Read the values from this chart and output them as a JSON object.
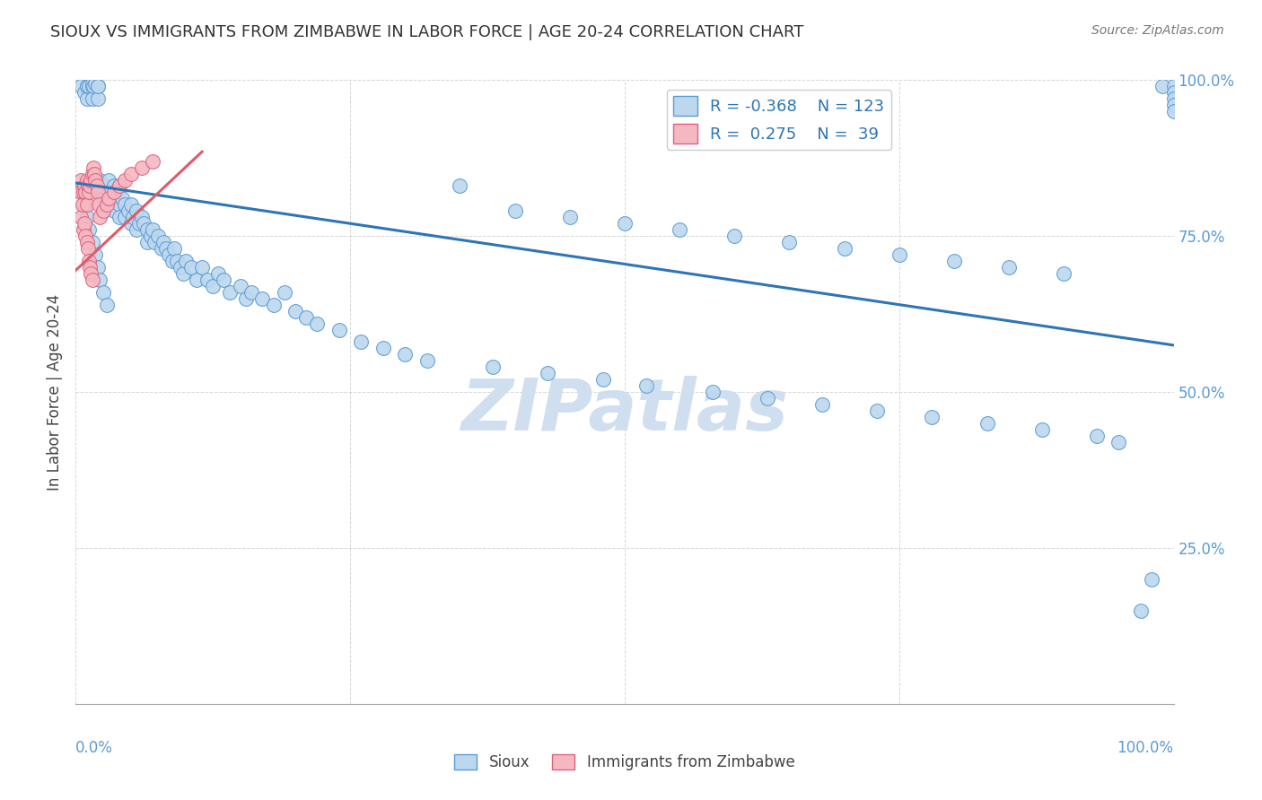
{
  "title": "SIOUX VS IMMIGRANTS FROM ZIMBABWE IN LABOR FORCE | AGE 20-24 CORRELATION CHART",
  "source": "Source: ZipAtlas.com",
  "ylabel": "In Labor Force | Age 20-24",
  "xlim": [
    0.0,
    1.0
  ],
  "ylim": [
    0.0,
    1.0
  ],
  "color_blue": "#BDD7EE",
  "color_blue_edge": "#5B9BD5",
  "color_pink": "#F4B8C1",
  "color_pink_edge": "#E06080",
  "color_blue_line": "#2E75B6",
  "color_pink_line": "#E05A6A",
  "watermark_color": "#D0DFF0",
  "background_color": "#FFFFFF",
  "tick_color": "#5B9BD5",
  "blue_line_x0": 0.0,
  "blue_line_y0": 0.835,
  "blue_line_x1": 1.0,
  "blue_line_y1": 0.575,
  "pink_line_x0": 0.0,
  "pink_line_y0": 0.695,
  "pink_line_x1": 0.115,
  "pink_line_y1": 0.885,
  "sioux_x": [
    0.005,
    0.008,
    0.01,
    0.01,
    0.01,
    0.012,
    0.015,
    0.015,
    0.015,
    0.016,
    0.018,
    0.02,
    0.02,
    0.02,
    0.022,
    0.022,
    0.025,
    0.025,
    0.025,
    0.028,
    0.03,
    0.03,
    0.03,
    0.032,
    0.035,
    0.035,
    0.038,
    0.04,
    0.04,
    0.04,
    0.042,
    0.045,
    0.045,
    0.048,
    0.05,
    0.05,
    0.052,
    0.055,
    0.055,
    0.058,
    0.06,
    0.062,
    0.065,
    0.065,
    0.068,
    0.07,
    0.072,
    0.075,
    0.078,
    0.08,
    0.082,
    0.085,
    0.088,
    0.09,
    0.092,
    0.095,
    0.098,
    0.1,
    0.105,
    0.11,
    0.115,
    0.12,
    0.125,
    0.13,
    0.135,
    0.14,
    0.15,
    0.155,
    0.16,
    0.17,
    0.18,
    0.19,
    0.2,
    0.21,
    0.22,
    0.24,
    0.26,
    0.28,
    0.3,
    0.32,
    0.35,
    0.38,
    0.4,
    0.43,
    0.45,
    0.48,
    0.5,
    0.52,
    0.55,
    0.58,
    0.6,
    0.63,
    0.65,
    0.68,
    0.7,
    0.73,
    0.75,
    0.78,
    0.8,
    0.83,
    0.85,
    0.88,
    0.9,
    0.93,
    0.95,
    0.97,
    0.98,
    0.99,
    1.0,
    1.0,
    1.0,
    1.0,
    1.0,
    0.005,
    0.008,
    0.01,
    0.012,
    0.015,
    0.018,
    0.02,
    0.022,
    0.025,
    0.028
  ],
  "sioux_y": [
    0.99,
    0.98,
    0.99,
    0.97,
    0.99,
    0.99,
    0.99,
    0.97,
    0.995,
    0.99,
    0.995,
    0.99,
    0.97,
    0.99,
    0.84,
    0.82,
    0.83,
    0.81,
    0.79,
    0.82,
    0.84,
    0.82,
    0.8,
    0.81,
    0.83,
    0.79,
    0.82,
    0.83,
    0.8,
    0.78,
    0.81,
    0.8,
    0.78,
    0.79,
    0.8,
    0.77,
    0.78,
    0.79,
    0.76,
    0.77,
    0.78,
    0.77,
    0.76,
    0.74,
    0.75,
    0.76,
    0.74,
    0.75,
    0.73,
    0.74,
    0.73,
    0.72,
    0.71,
    0.73,
    0.71,
    0.7,
    0.69,
    0.71,
    0.7,
    0.68,
    0.7,
    0.68,
    0.67,
    0.69,
    0.68,
    0.66,
    0.67,
    0.65,
    0.66,
    0.65,
    0.64,
    0.66,
    0.63,
    0.62,
    0.61,
    0.6,
    0.58,
    0.57,
    0.56,
    0.55,
    0.83,
    0.54,
    0.79,
    0.53,
    0.78,
    0.52,
    0.77,
    0.51,
    0.76,
    0.5,
    0.75,
    0.49,
    0.74,
    0.48,
    0.73,
    0.47,
    0.72,
    0.46,
    0.71,
    0.45,
    0.7,
    0.44,
    0.69,
    0.43,
    0.42,
    0.15,
    0.2,
    0.99,
    0.99,
    0.98,
    0.97,
    0.96,
    0.95,
    0.82,
    0.8,
    0.78,
    0.76,
    0.74,
    0.72,
    0.7,
    0.68,
    0.66,
    0.64
  ],
  "zimbabwe_x": [
    0.005,
    0.005,
    0.005,
    0.006,
    0.007,
    0.007,
    0.008,
    0.008,
    0.009,
    0.009,
    0.01,
    0.01,
    0.01,
    0.011,
    0.011,
    0.012,
    0.012,
    0.013,
    0.013,
    0.014,
    0.014,
    0.015,
    0.015,
    0.016,
    0.017,
    0.018,
    0.019,
    0.02,
    0.021,
    0.022,
    0.025,
    0.028,
    0.03,
    0.035,
    0.04,
    0.045,
    0.05,
    0.06,
    0.07
  ],
  "zimbabwe_y": [
    0.84,
    0.82,
    0.78,
    0.8,
    0.82,
    0.76,
    0.83,
    0.77,
    0.82,
    0.75,
    0.84,
    0.8,
    0.74,
    0.83,
    0.73,
    0.82,
    0.71,
    0.83,
    0.7,
    0.84,
    0.69,
    0.85,
    0.68,
    0.86,
    0.85,
    0.84,
    0.83,
    0.82,
    0.8,
    0.78,
    0.79,
    0.8,
    0.81,
    0.82,
    0.83,
    0.84,
    0.85,
    0.86,
    0.87
  ]
}
